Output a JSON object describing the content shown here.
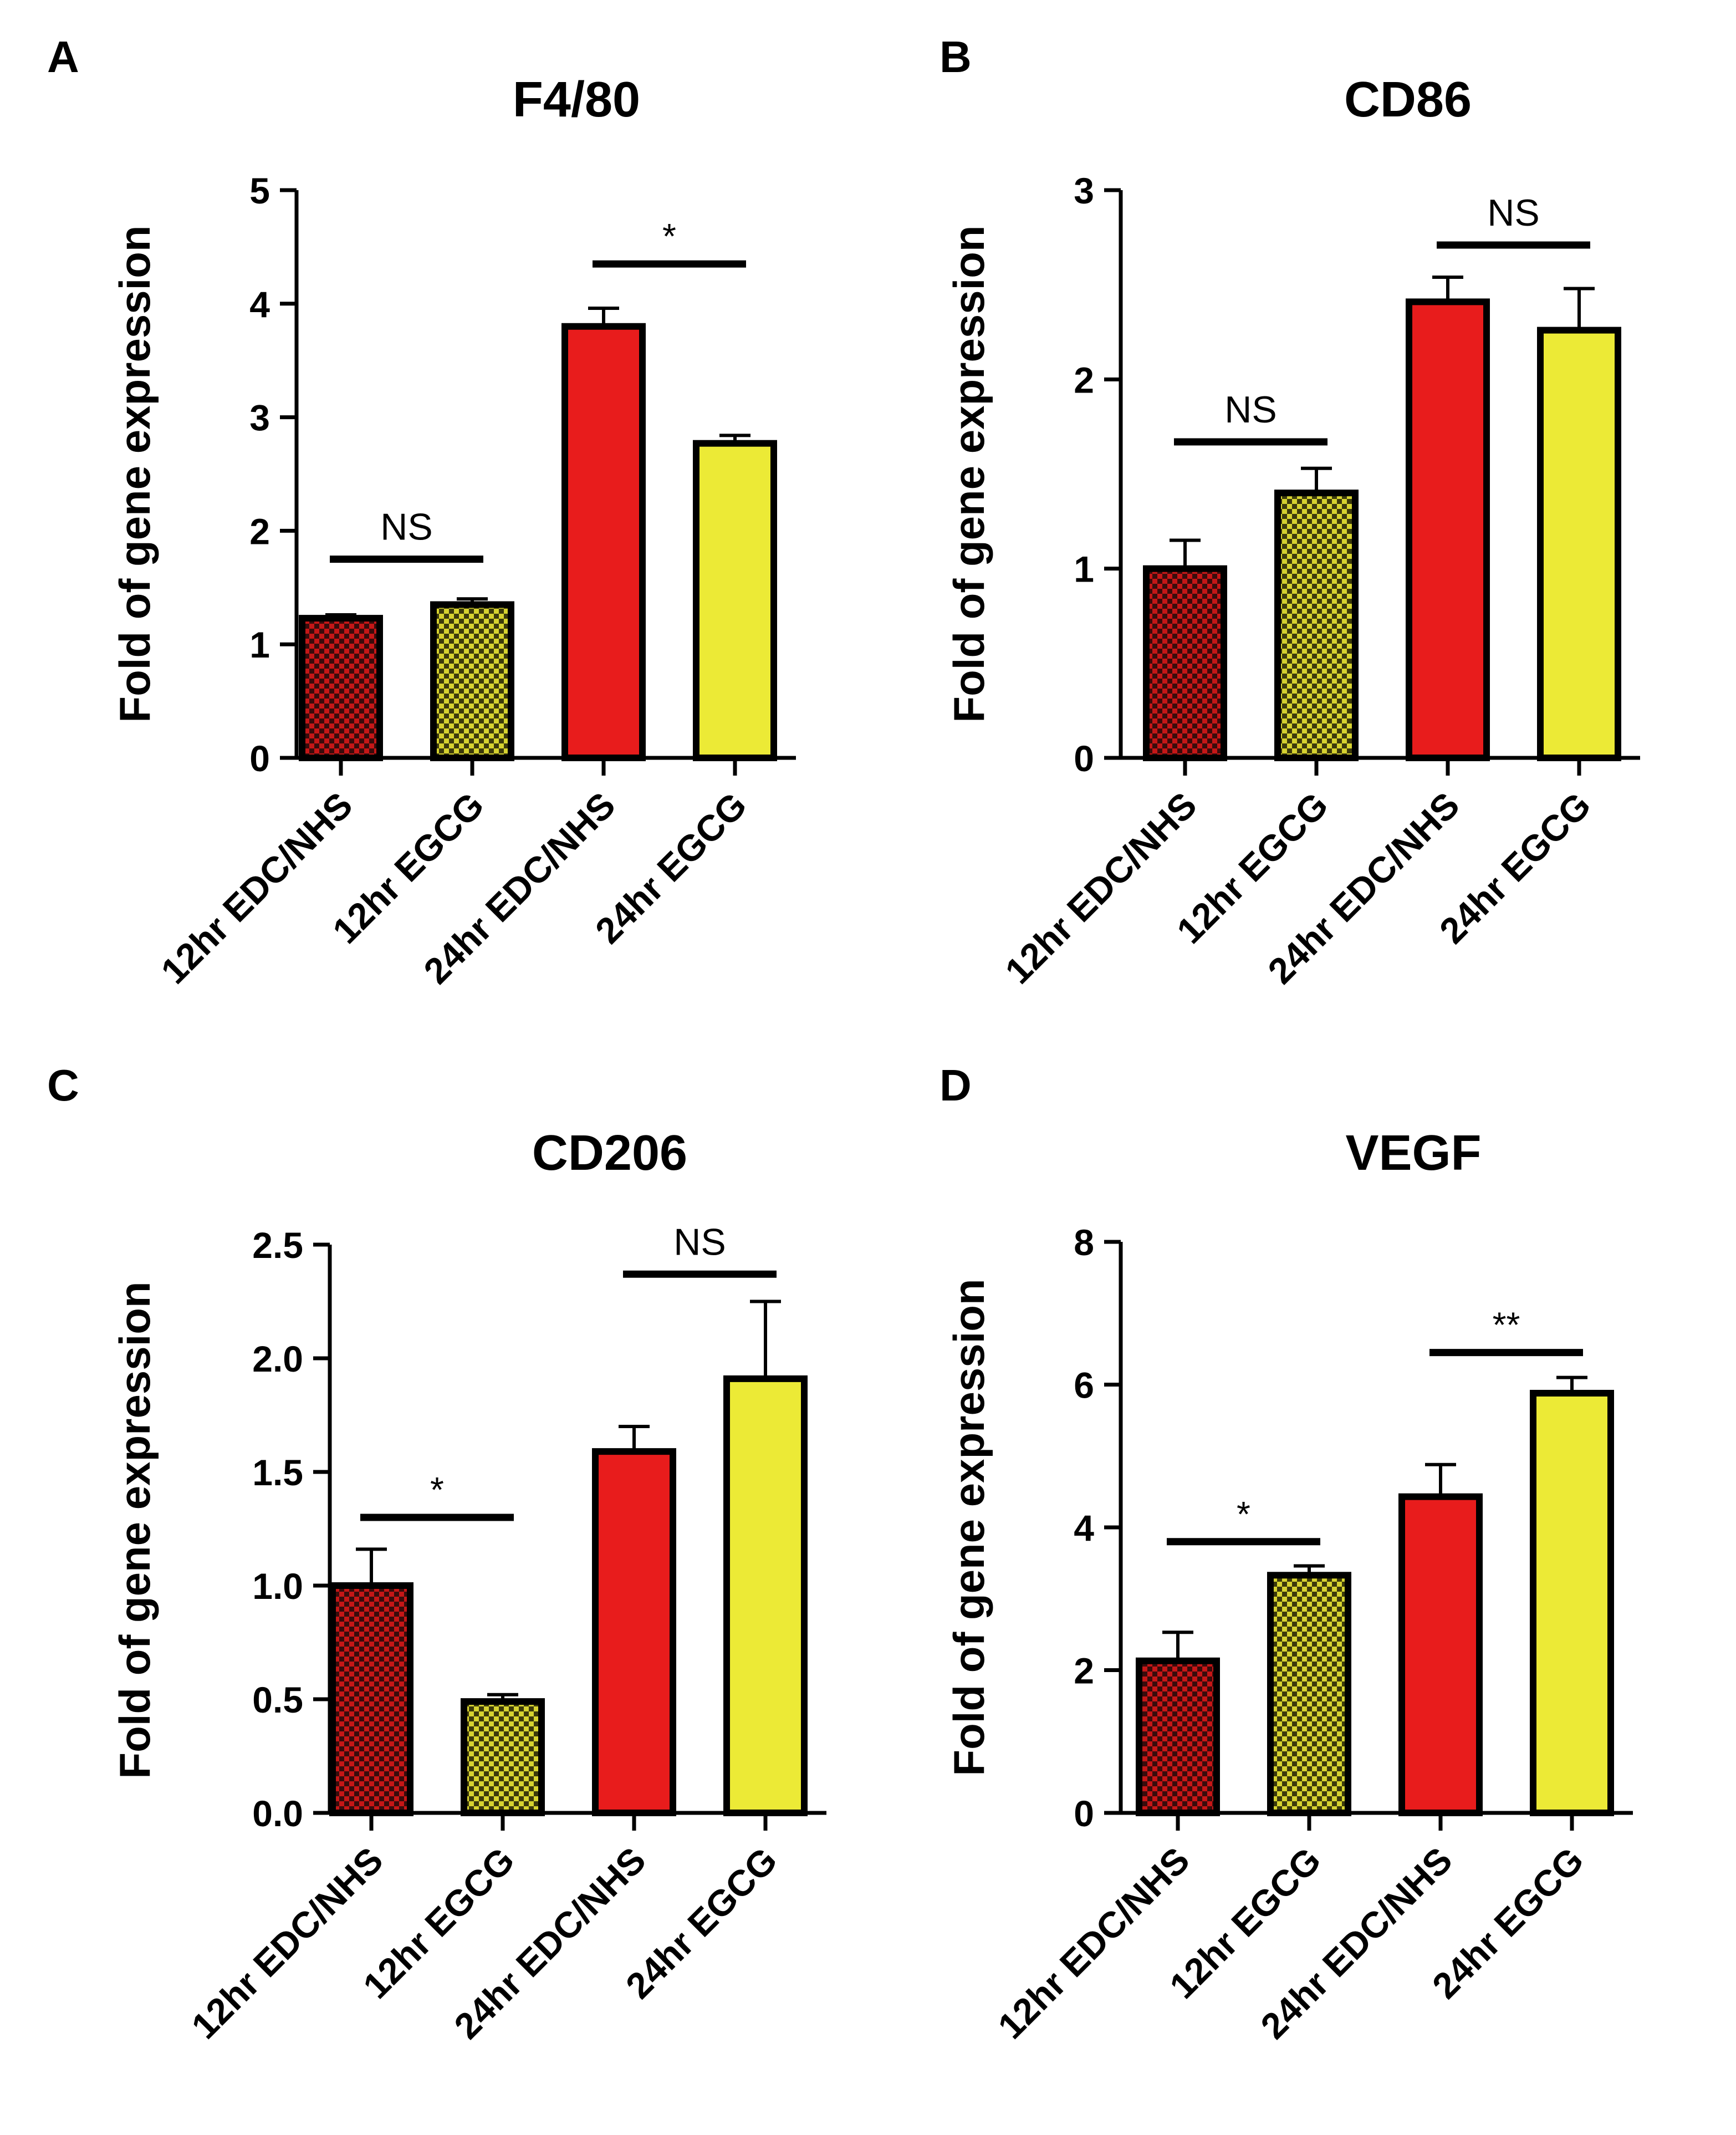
{
  "colors": {
    "dark_red": "#c51717",
    "red": "#e81c1c",
    "yellow": "#ecea36",
    "olive_yellow": "#d6d230",
    "black": "#000000"
  },
  "chart_data": [
    {
      "panel": "A",
      "type": "bar",
      "title": "F4/80",
      "ylabel": "Fold of gene expression",
      "categories": [
        "12hr EDC/NHS",
        "12hr EGCG",
        "24hr EDC/NHS",
        "24hr EGCG"
      ],
      "values": [
        1.23,
        1.35,
        3.8,
        2.77
      ],
      "errors": [
        0.03,
        0.05,
        0.16,
        0.07
      ],
      "patterns": [
        "checker-red",
        "checker-yellow",
        "solid-red",
        "solid-yellow"
      ],
      "ylim": [
        0,
        5
      ],
      "yticks": [
        "0",
        "1",
        "2",
        "3",
        "4",
        "5"
      ],
      "significance": [
        {
          "from": 0,
          "to": 1,
          "y": 1.75,
          "label": "NS"
        },
        {
          "from": 2,
          "to": 3,
          "y": 4.35,
          "label": "*"
        }
      ]
    },
    {
      "panel": "B",
      "type": "bar",
      "title": "CD86",
      "ylabel": "Fold of gene expression",
      "categories": [
        "12hr EDC/NHS",
        "12hr EGCG",
        "24hr EDC/NHS",
        "24hr EGCG"
      ],
      "values": [
        1.0,
        1.4,
        2.41,
        2.26
      ],
      "errors": [
        0.15,
        0.13,
        0.13,
        0.22
      ],
      "patterns": [
        "checker-red",
        "checker-yellow",
        "solid-red",
        "solid-yellow"
      ],
      "ylim": [
        0,
        3
      ],
      "yticks": [
        "0",
        "1",
        "2",
        "3"
      ],
      "significance": [
        {
          "from": 0,
          "to": 1,
          "y": 1.67,
          "label": "NS"
        },
        {
          "from": 2,
          "to": 3,
          "y": 2.71,
          "label": "NS"
        }
      ]
    },
    {
      "panel": "C",
      "type": "bar",
      "title": "CD206",
      "ylabel": "Fold of gene expression",
      "categories": [
        "12hr EDC/NHS",
        "12hr EGCG",
        "24hr EDC/NHS",
        "24hr EGCG"
      ],
      "values": [
        1.0,
        0.49,
        1.59,
        1.91
      ],
      "errors": [
        0.16,
        0.03,
        0.11,
        0.34
      ],
      "patterns": [
        "checker-red",
        "checker-yellow",
        "solid-red",
        "solid-yellow"
      ],
      "ylim": [
        0,
        2.5
      ],
      "yticks": [
        "0.0",
        "0.5",
        "1.0",
        "1.5",
        "2.0",
        "2.5"
      ],
      "significance": [
        {
          "from": 0,
          "to": 1,
          "y": 1.3,
          "label": "*"
        },
        {
          "from": 2,
          "to": 3,
          "y": 2.37,
          "label": "NS"
        }
      ]
    },
    {
      "panel": "D",
      "type": "bar",
      "title": "VEGF",
      "ylabel": "Fold of gene expression",
      "categories": [
        "12hr EDC/NHS",
        "12hr EGCG",
        "24hr EDC/NHS",
        "24hr EGCG"
      ],
      "values": [
        2.13,
        3.33,
        4.43,
        5.88
      ],
      "errors": [
        0.4,
        0.13,
        0.45,
        0.22
      ],
      "patterns": [
        "checker-red",
        "checker-yellow",
        "solid-red",
        "solid-yellow"
      ],
      "ylim": [
        0,
        8
      ],
      "yticks": [
        "0",
        "2",
        "4",
        "6",
        "8"
      ],
      "significance": [
        {
          "from": 0,
          "to": 1,
          "y": 3.8,
          "label": "*"
        },
        {
          "from": 2,
          "to": 3,
          "y": 6.45,
          "label": "**"
        }
      ]
    }
  ]
}
